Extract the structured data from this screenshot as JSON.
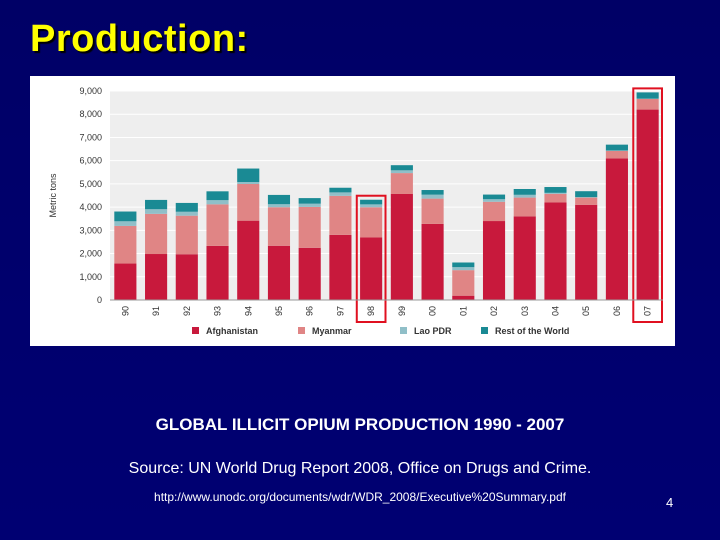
{
  "slide": {
    "title": "Production:",
    "caption_title": "GLOBAL ILLICIT OPIUM PRODUCTION 1990 - 2007",
    "source": "Source: UN World Drug Report 2008, Office on Drugs and Crime.",
    "url": "http://www.unodc.org/documents/wdr/WDR_2008/Executive%20Summary.pdf",
    "page_number": "4"
  },
  "chart_data": {
    "type": "bar",
    "stacked": true,
    "title": "",
    "xlabel": "",
    "ylabel": "Metric tons",
    "ylim": [
      0,
      9000
    ],
    "yticks": [
      0,
      1000,
      2000,
      3000,
      4000,
      5000,
      6000,
      7000,
      8000,
      9000
    ],
    "ytick_labels": [
      "0",
      "1,000",
      "2,000",
      "3,000",
      "4,000",
      "5,000",
      "6,000",
      "7,000",
      "8,000",
      "9,000"
    ],
    "categories": [
      "90",
      "91",
      "92",
      "93",
      "94",
      "95",
      "96",
      "97",
      "98",
      "99",
      "00",
      "01",
      "02",
      "03",
      "04",
      "05",
      "06",
      "07"
    ],
    "highlighted": [
      "98",
      "07"
    ],
    "series": [
      {
        "name": "Afghanistan",
        "color": "#c8193c",
        "values": [
          1570,
          1980,
          1970,
          2330,
          3416,
          2335,
          2248,
          2804,
          2693,
          4565,
          3276,
          185,
          3400,
          3600,
          4200,
          4100,
          6100,
          8200
        ]
      },
      {
        "name": "Myanmar",
        "color": "#e08585",
        "values": [
          1620,
          1730,
          1660,
          1790,
          1580,
          1660,
          1760,
          1680,
          1300,
          900,
          1090,
          1100,
          830,
          810,
          370,
          310,
          320,
          460
        ]
      },
      {
        "name": "Lao PDR",
        "color": "#90bfc8",
        "values": [
          200,
          200,
          170,
          180,
          85,
          130,
          140,
          150,
          125,
          120,
          170,
          130,
          110,
          120,
          45,
          25,
          20,
          10
        ]
      },
      {
        "name": "Rest of the World",
        "color": "#1a8a94",
        "values": [
          420,
          400,
          380,
          380,
          580,
          400,
          240,
          200,
          200,
          220,
          200,
          200,
          200,
          250,
          250,
          250,
          250,
          270
        ]
      }
    ],
    "legend_position": "bottom"
  }
}
